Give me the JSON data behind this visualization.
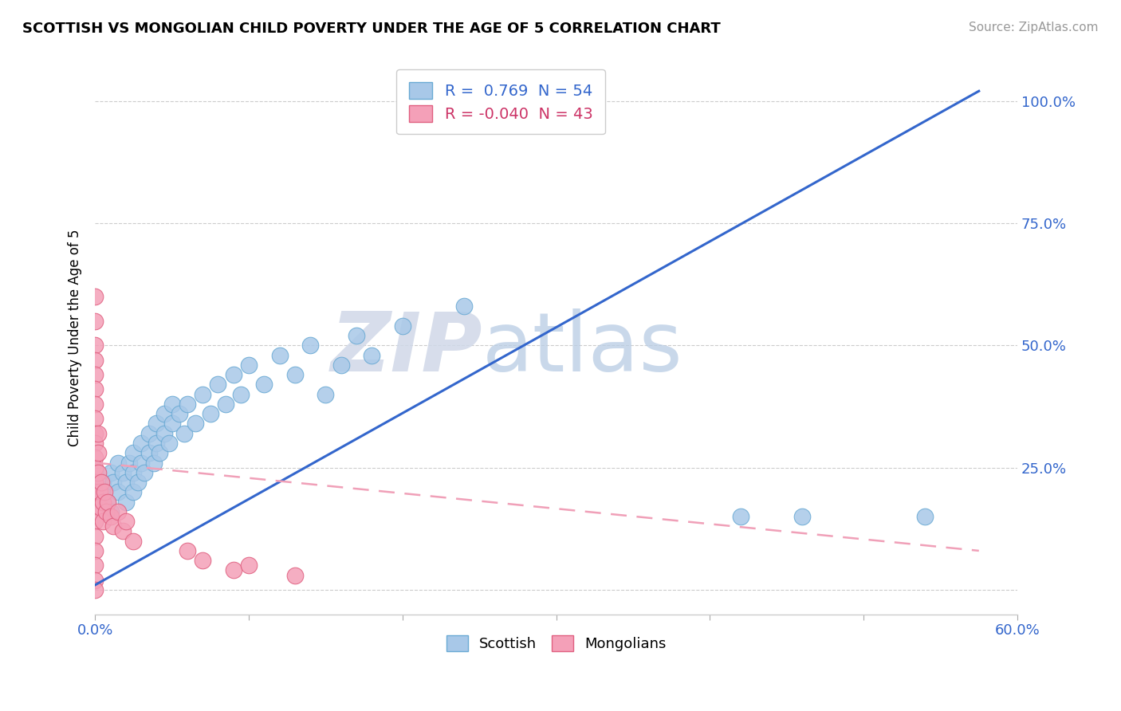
{
  "title": "SCOTTISH VS MONGOLIAN CHILD POVERTY UNDER THE AGE OF 5 CORRELATION CHART",
  "source": "Source: ZipAtlas.com",
  "ylabel": "Child Poverty Under the Age of 5",
  "xlim": [
    0.0,
    0.6
  ],
  "ylim": [
    -0.05,
    1.08
  ],
  "xticks": [
    0.0,
    0.1,
    0.2,
    0.3,
    0.4,
    0.5,
    0.6
  ],
  "xticklabels": [
    "0.0%",
    "",
    "",
    "",
    "",
    "",
    "60.0%"
  ],
  "yticks": [
    0.0,
    0.25,
    0.5,
    0.75,
    1.0
  ],
  "yticklabels_right": [
    "",
    "25.0%",
    "50.0%",
    "75.0%",
    "100.0%"
  ],
  "legend_r1": "R =  0.769  N = 54",
  "legend_r2": "R = -0.040  N = 43",
  "scottish_color": "#a8c8e8",
  "scottish_edge": "#6aaad4",
  "mongolian_color": "#f4a0b8",
  "mongolian_edge": "#e06080",
  "regression_blue": "#3366cc",
  "regression_pink": "#f0a0b8",
  "watermark_zip": "ZIP",
  "watermark_atlas": "atlas",
  "scottish_data": [
    [
      0.005,
      0.2
    ],
    [
      0.005,
      0.22
    ],
    [
      0.008,
      0.18
    ],
    [
      0.01,
      0.16
    ],
    [
      0.01,
      0.24
    ],
    [
      0.012,
      0.22
    ],
    [
      0.015,
      0.2
    ],
    [
      0.015,
      0.26
    ],
    [
      0.018,
      0.24
    ],
    [
      0.02,
      0.18
    ],
    [
      0.02,
      0.22
    ],
    [
      0.022,
      0.26
    ],
    [
      0.025,
      0.2
    ],
    [
      0.025,
      0.24
    ],
    [
      0.025,
      0.28
    ],
    [
      0.028,
      0.22
    ],
    [
      0.03,
      0.26
    ],
    [
      0.03,
      0.3
    ],
    [
      0.032,
      0.24
    ],
    [
      0.035,
      0.28
    ],
    [
      0.035,
      0.32
    ],
    [
      0.038,
      0.26
    ],
    [
      0.04,
      0.3
    ],
    [
      0.04,
      0.34
    ],
    [
      0.042,
      0.28
    ],
    [
      0.045,
      0.32
    ],
    [
      0.045,
      0.36
    ],
    [
      0.048,
      0.3
    ],
    [
      0.05,
      0.34
    ],
    [
      0.05,
      0.38
    ],
    [
      0.055,
      0.36
    ],
    [
      0.058,
      0.32
    ],
    [
      0.06,
      0.38
    ],
    [
      0.065,
      0.34
    ],
    [
      0.07,
      0.4
    ],
    [
      0.075,
      0.36
    ],
    [
      0.08,
      0.42
    ],
    [
      0.085,
      0.38
    ],
    [
      0.09,
      0.44
    ],
    [
      0.095,
      0.4
    ],
    [
      0.1,
      0.46
    ],
    [
      0.11,
      0.42
    ],
    [
      0.12,
      0.48
    ],
    [
      0.13,
      0.44
    ],
    [
      0.14,
      0.5
    ],
    [
      0.15,
      0.4
    ],
    [
      0.16,
      0.46
    ],
    [
      0.17,
      0.52
    ],
    [
      0.18,
      0.48
    ],
    [
      0.2,
      0.54
    ],
    [
      0.24,
      0.58
    ],
    [
      0.42,
      0.15
    ],
    [
      0.46,
      0.15
    ],
    [
      0.54,
      0.15
    ]
  ],
  "mongolian_data": [
    [
      0.0,
      0.6
    ],
    [
      0.0,
      0.55
    ],
    [
      0.0,
      0.5
    ],
    [
      0.0,
      0.47
    ],
    [
      0.0,
      0.44
    ],
    [
      0.0,
      0.41
    ],
    [
      0.0,
      0.38
    ],
    [
      0.0,
      0.35
    ],
    [
      0.0,
      0.32
    ],
    [
      0.0,
      0.3
    ],
    [
      0.0,
      0.27
    ],
    [
      0.0,
      0.25
    ],
    [
      0.0,
      0.22
    ],
    [
      0.0,
      0.2
    ],
    [
      0.0,
      0.17
    ],
    [
      0.0,
      0.14
    ],
    [
      0.0,
      0.11
    ],
    [
      0.0,
      0.08
    ],
    [
      0.0,
      0.05
    ],
    [
      0.0,
      0.02
    ],
    [
      0.0,
      0.0
    ],
    [
      0.002,
      0.32
    ],
    [
      0.002,
      0.28
    ],
    [
      0.002,
      0.24
    ],
    [
      0.003,
      0.2
    ],
    [
      0.003,
      0.17
    ],
    [
      0.004,
      0.22
    ],
    [
      0.005,
      0.18
    ],
    [
      0.005,
      0.14
    ],
    [
      0.006,
      0.2
    ],
    [
      0.007,
      0.16
    ],
    [
      0.008,
      0.18
    ],
    [
      0.01,
      0.15
    ],
    [
      0.012,
      0.13
    ],
    [
      0.015,
      0.16
    ],
    [
      0.018,
      0.12
    ],
    [
      0.02,
      0.14
    ],
    [
      0.025,
      0.1
    ],
    [
      0.06,
      0.08
    ],
    [
      0.07,
      0.06
    ],
    [
      0.09,
      0.04
    ],
    [
      0.1,
      0.05
    ],
    [
      0.13,
      0.03
    ]
  ],
  "blue_line_x": [
    0.0,
    0.575
  ],
  "blue_line_y": [
    0.01,
    1.02
  ],
  "pink_line_x": [
    0.0,
    0.575
  ],
  "pink_line_y": [
    0.26,
    0.08
  ]
}
